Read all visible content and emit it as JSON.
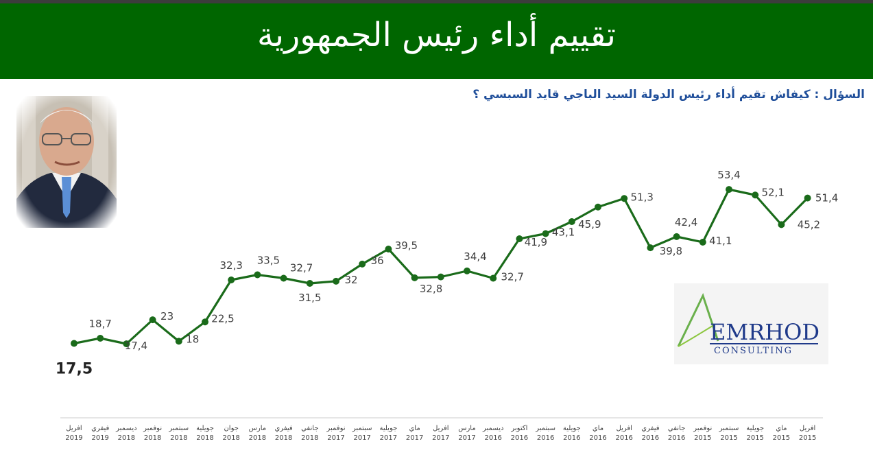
{
  "header": {
    "title": "تقييم أداء رئيس الجمهورية",
    "question": "السؤال : كيفاش تقيم أداء رئيس الدولة السيد الباجي قايد السبسي ؟"
  },
  "logo": {
    "name": "EMRHOD",
    "sub": "CONSULTING"
  },
  "colors": {
    "banner": "#006600",
    "line": "#1a6b1a",
    "question": "#1f4e9a"
  },
  "chart_data": {
    "type": "line",
    "categories": [
      [
        "افريل",
        "2019"
      ],
      [
        "فيفري",
        "2019"
      ],
      [
        "ديسمبر",
        "2018"
      ],
      [
        "نوفمبر",
        "2018"
      ],
      [
        "سبتمبر",
        "2018"
      ],
      [
        "جويلية",
        "2018"
      ],
      [
        "جوان",
        "2018"
      ],
      [
        "مارس",
        "2018"
      ],
      [
        "فيفري",
        "2018"
      ],
      [
        "جانفي",
        "2018"
      ],
      [
        "نوفمبر",
        "2017"
      ],
      [
        "سبتمبر",
        "2017"
      ],
      [
        "جويلية",
        "2017"
      ],
      [
        "ماي",
        "2017"
      ],
      [
        "افريل",
        "2017"
      ],
      [
        "مارس",
        "2017"
      ],
      [
        "ديسمبر",
        "2016"
      ],
      [
        "اكتوبر",
        "2016"
      ],
      [
        "سبتمبر",
        "2016"
      ],
      [
        "جويلية",
        "2016"
      ],
      [
        "ماي",
        "2016"
      ],
      [
        "افريل",
        "2016"
      ],
      [
        "فيفري",
        "2016"
      ],
      [
        "جانفي",
        "2016"
      ],
      [
        "نوفمبر",
        "2015"
      ],
      [
        "سبتمبر",
        "2015"
      ],
      [
        "جويلية",
        "2015"
      ],
      [
        "ماي",
        "2015"
      ],
      [
        "افريل",
        "2015"
      ]
    ],
    "values": [
      17.5,
      18.7,
      17.4,
      23,
      18,
      22.5,
      32.3,
      33.5,
      32.7,
      31.5,
      32,
      36,
      39.5,
      32.8,
      33,
      34.4,
      32.7,
      41.9,
      43.1,
      45.9,
      49.3,
      51.3,
      39.8,
      42.4,
      41.1,
      53.4,
      52.1,
      45.2,
      51.4
    ],
    "labels": [
      "17,5",
      "18,7",
      "17,4",
      "23",
      "18",
      "22,5",
      "32,3",
      "33,5",
      "32,7",
      "31,5",
      "32",
      "36",
      "39,5",
      "32,8",
      "",
      "34,4",
      "32,7",
      "41,9",
      "43,1",
      "45,9",
      "",
      "51,3",
      "39,8",
      "42,4",
      "41,1",
      "53,4",
      "52,1",
      "45,2",
      "51,4"
    ]
  }
}
